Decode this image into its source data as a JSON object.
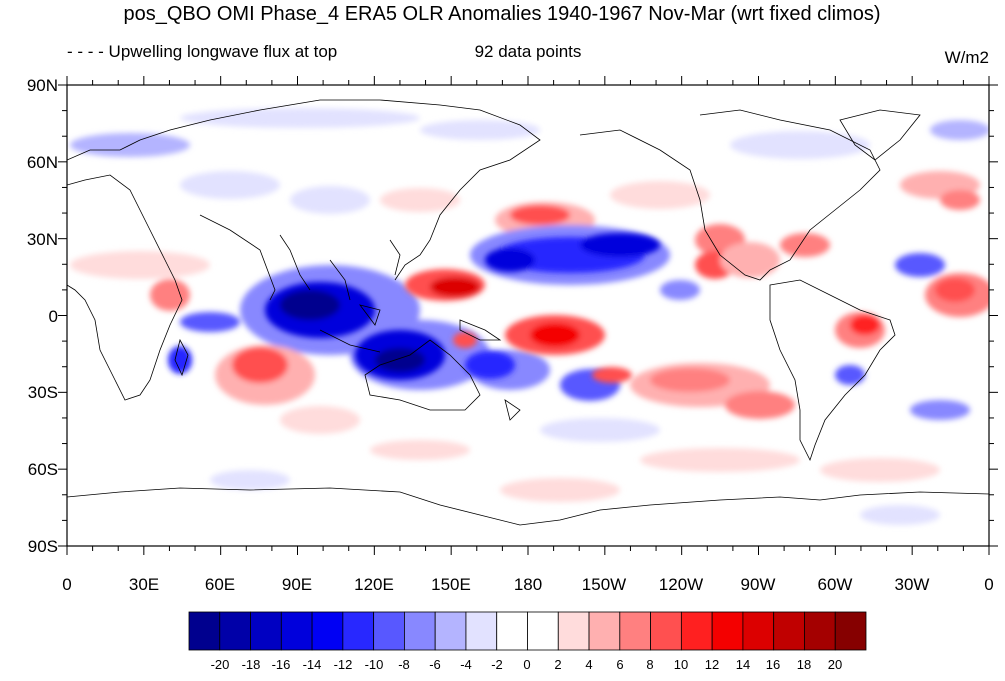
{
  "figure": {
    "title": "pos_QBO OMI Phase_4 ERA5 OLR Anomalies 1940-1967 Nov-Mar (wrt fixed climos)",
    "left_subtitle": "- - - - Upwelling longwave flux at top",
    "center_subtitle": "92 data points",
    "units": "W/m2"
  },
  "map": {
    "projection": "cylindrical-equidistant",
    "lat_ticks": [
      "90N",
      "60N",
      "30N",
      "0",
      "30S",
      "60S",
      "90S"
    ],
    "lon_ticks": [
      "0",
      "30E",
      "60E",
      "90E",
      "120E",
      "150E",
      "180",
      "150W",
      "120W",
      "90W",
      "60W",
      "30W",
      "0"
    ],
    "coastlines": "black-thin"
  },
  "colorbar": {
    "labels": [
      "-20",
      "-18",
      "-16",
      "-14",
      "-12",
      "-10",
      "-8",
      "-6",
      "-4",
      "-2",
      "0",
      "2",
      "4",
      "6",
      "8",
      "10",
      "12",
      "14",
      "16",
      "18",
      "20"
    ],
    "colors": [
      "#00008e",
      "#0000a8",
      "#0000c2",
      "#0000dc",
      "#0000f4",
      "#2828ff",
      "#5858ff",
      "#8888ff",
      "#b4b4ff",
      "#e2e2ff",
      "#ffffff",
      "#ffffff",
      "#ffdcdc",
      "#ffb0b0",
      "#ff8080",
      "#ff5050",
      "#ff2020",
      "#f40000",
      "#dc0000",
      "#c00000",
      "#a40000",
      "#860000"
    ]
  }
}
